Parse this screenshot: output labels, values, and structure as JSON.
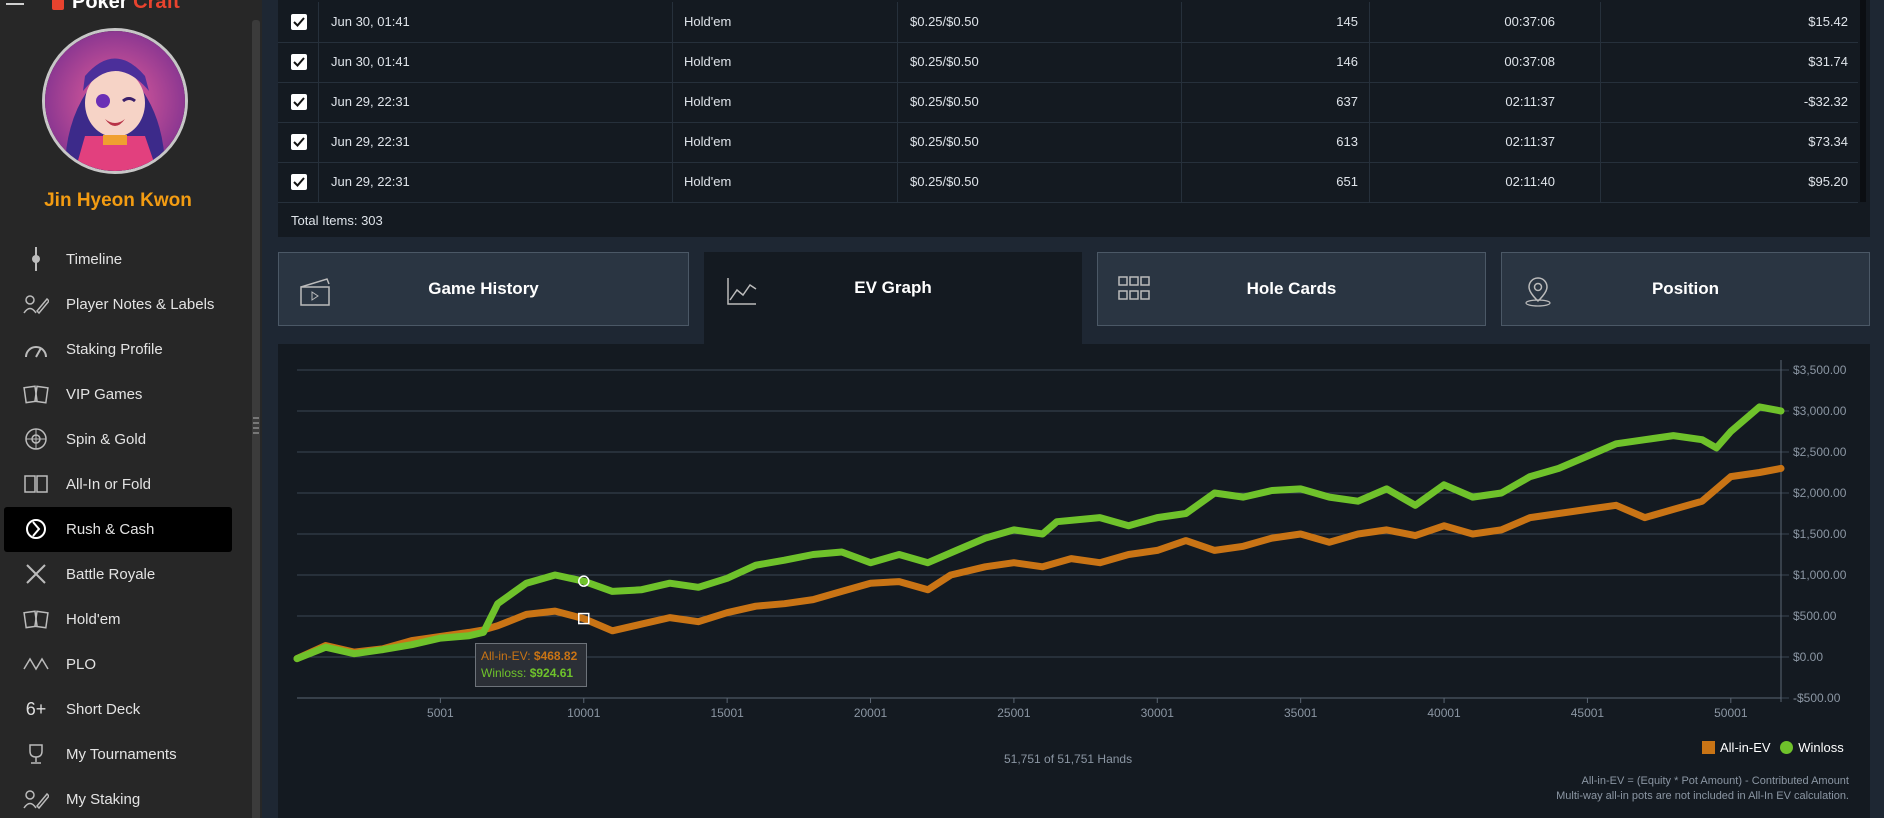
{
  "app": {
    "brand_main": "Poker",
    "brand_accent": "Craft"
  },
  "user": {
    "name": "Jin Hyeon Kwon"
  },
  "sidebar": {
    "items": [
      {
        "label": "Timeline",
        "icon": "timeline-icon",
        "active": false
      },
      {
        "label": "Player Notes & Labels",
        "icon": "notes-pen-icon",
        "active": false
      },
      {
        "label": "Staking Profile",
        "icon": "gauge-icon",
        "active": false
      },
      {
        "label": "VIP Games",
        "icon": "cards-icon",
        "active": false
      },
      {
        "label": "Spin & Gold",
        "icon": "spin-icon",
        "active": false
      },
      {
        "label": "All-In or Fold",
        "icon": "allin-cards-icon",
        "active": false
      },
      {
        "label": "Rush & Cash",
        "icon": "rush-icon",
        "active": true
      },
      {
        "label": "Battle Royale",
        "icon": "crossed-swords-icon",
        "active": false
      },
      {
        "label": "Hold'em",
        "icon": "holdem-cards-icon",
        "active": false
      },
      {
        "label": "PLO",
        "icon": "plo-cards-icon",
        "active": false
      },
      {
        "label": "Short Deck",
        "icon": "six-plus-icon",
        "active": false
      },
      {
        "label": "My Tournaments",
        "icon": "trophy-icon",
        "active": false
      },
      {
        "label": "My Staking",
        "icon": "staking-pen-icon",
        "active": false
      }
    ]
  },
  "table": {
    "rows": [
      {
        "date": "Jun 30, 01:41",
        "game": "Hold'em",
        "stakes": "$0.25/$0.50",
        "hands": "145",
        "duration": "00:37:06",
        "result": "$15.42"
      },
      {
        "date": "Jun 30, 01:41",
        "game": "Hold'em",
        "stakes": "$0.25/$0.50",
        "hands": "146",
        "duration": "00:37:08",
        "result": "$31.74"
      },
      {
        "date": "Jun 29, 22:31",
        "game": "Hold'em",
        "stakes": "$0.25/$0.50",
        "hands": "637",
        "duration": "02:11:37",
        "result": "-$32.32"
      },
      {
        "date": "Jun 29, 22:31",
        "game": "Hold'em",
        "stakes": "$0.25/$0.50",
        "hands": "613",
        "duration": "02:11:37",
        "result": "$73.34"
      },
      {
        "date": "Jun 29, 22:31",
        "game": "Hold'em",
        "stakes": "$0.25/$0.50",
        "hands": "651",
        "duration": "02:11:40",
        "result": "$95.20"
      }
    ],
    "total_items": "Total Items: 303"
  },
  "tabs": [
    {
      "label": "Game History",
      "icon": "clapperboard-icon",
      "active": false
    },
    {
      "label": "EV Graph",
      "icon": "line-graph-icon",
      "active": true
    },
    {
      "label": "Hole Cards",
      "icon": "grid-icon",
      "active": false
    },
    {
      "label": "Position",
      "icon": "location-pin-icon",
      "active": false
    }
  ],
  "chart_data": {
    "type": "line",
    "x_ticks": [
      5001,
      10001,
      15001,
      20001,
      25001,
      30001,
      35001,
      40001,
      45001,
      50001
    ],
    "x_tick_labels": [
      "5001",
      "10001",
      "15001",
      "20001",
      "25001",
      "30001",
      "35001",
      "40001",
      "45001",
      "50001"
    ],
    "xlim": [
      1,
      51751
    ],
    "y_ticks": [
      -500,
      0,
      500,
      1000,
      1500,
      2000,
      2500,
      3000,
      3500
    ],
    "y_tick_labels": [
      "-$500.00",
      "$0.00",
      "$500.00",
      "$1,000.00",
      "$1,500.00",
      "$2,000.00",
      "$2,500.00",
      "$3,000.00",
      "$3,500.00"
    ],
    "ylim": [
      -500,
      3500
    ],
    "grid": true,
    "legend_position": "bottom-right",
    "series": [
      {
        "name": "All-in-EV",
        "color": "#c97415",
        "points": [
          [
            1,
            -20
          ],
          [
            1000,
            140
          ],
          [
            2000,
            60
          ],
          [
            3000,
            100
          ],
          [
            4000,
            200
          ],
          [
            5000,
            250
          ],
          [
            6000,
            300
          ],
          [
            6500,
            330
          ],
          [
            7000,
            380
          ],
          [
            8000,
            520
          ],
          [
            9000,
            560
          ],
          [
            10001,
            468.82
          ],
          [
            11000,
            320
          ],
          [
            12000,
            400
          ],
          [
            13000,
            480
          ],
          [
            14000,
            430
          ],
          [
            15000,
            540
          ],
          [
            16000,
            620
          ],
          [
            17000,
            650
          ],
          [
            18000,
            700
          ],
          [
            19000,
            800
          ],
          [
            20000,
            900
          ],
          [
            21000,
            920
          ],
          [
            22000,
            820
          ],
          [
            22800,
            1000
          ],
          [
            24000,
            1100
          ],
          [
            25000,
            1150
          ],
          [
            26000,
            1100
          ],
          [
            27000,
            1200
          ],
          [
            28000,
            1150
          ],
          [
            29000,
            1250
          ],
          [
            30000,
            1300
          ],
          [
            31000,
            1420
          ],
          [
            32000,
            1300
          ],
          [
            33000,
            1350
          ],
          [
            34000,
            1450
          ],
          [
            35000,
            1500
          ],
          [
            36000,
            1400
          ],
          [
            37000,
            1500
          ],
          [
            38000,
            1550
          ],
          [
            39000,
            1480
          ],
          [
            40000,
            1600
          ],
          [
            41000,
            1500
          ],
          [
            42000,
            1550
          ],
          [
            43000,
            1700
          ],
          [
            44000,
            1750
          ],
          [
            45000,
            1800
          ],
          [
            46000,
            1850
          ],
          [
            47000,
            1700
          ],
          [
            48000,
            1800
          ],
          [
            49000,
            1900
          ],
          [
            50000,
            2200
          ],
          [
            51000,
            2250
          ],
          [
            51751,
            2300
          ]
        ]
      },
      {
        "name": "Winloss",
        "color": "#6fc22b",
        "points": [
          [
            1,
            -20
          ],
          [
            1000,
            120
          ],
          [
            2000,
            40
          ],
          [
            3000,
            90
          ],
          [
            4000,
            150
          ],
          [
            5000,
            230
          ],
          [
            6000,
            260
          ],
          [
            6500,
            300
          ],
          [
            7000,
            650
          ],
          [
            8000,
            900
          ],
          [
            9000,
            1000
          ],
          [
            10001,
            924.61
          ],
          [
            11000,
            800
          ],
          [
            12000,
            820
          ],
          [
            13000,
            900
          ],
          [
            14000,
            850
          ],
          [
            15000,
            960
          ],
          [
            16000,
            1120
          ],
          [
            17000,
            1180
          ],
          [
            18000,
            1250
          ],
          [
            19000,
            1280
          ],
          [
            20000,
            1150
          ],
          [
            21000,
            1250
          ],
          [
            22000,
            1150
          ],
          [
            23000,
            1300
          ],
          [
            24000,
            1450
          ],
          [
            25000,
            1550
          ],
          [
            26000,
            1500
          ],
          [
            26500,
            1650
          ],
          [
            28000,
            1700
          ],
          [
            29000,
            1600
          ],
          [
            30000,
            1700
          ],
          [
            31000,
            1750
          ],
          [
            32000,
            2000
          ],
          [
            33000,
            1950
          ],
          [
            34000,
            2030
          ],
          [
            35000,
            2050
          ],
          [
            36000,
            1950
          ],
          [
            37000,
            1900
          ],
          [
            38000,
            2050
          ],
          [
            39000,
            1850
          ],
          [
            40000,
            2100
          ],
          [
            41000,
            1950
          ],
          [
            42000,
            2000
          ],
          [
            43000,
            2200
          ],
          [
            44000,
            2300
          ],
          [
            45000,
            2450
          ],
          [
            46000,
            2600
          ],
          [
            47000,
            2650
          ],
          [
            48000,
            2700
          ],
          [
            49000,
            2650
          ],
          [
            49500,
            2550
          ],
          [
            50000,
            2750
          ],
          [
            51000,
            3050
          ],
          [
            51751,
            3000
          ]
        ]
      }
    ],
    "tooltip": {
      "x": 10001,
      "ev_label": "All-in-EV: ",
      "ev_value": "$468.82",
      "win_label": "Winloss: ",
      "win_value": "$924.61"
    }
  },
  "chart_footer": {
    "hand_count": "51,751 of 51,751 Hands",
    "legend_ev": "All-in-EV",
    "legend_win": "Winloss",
    "note1": "All-in-EV = (Equity * Pot Amount) - Contributed Amount",
    "note2": "Multi-way all-in pots are not included in All-In EV calculation."
  },
  "colors": {
    "accent_orange": "#f39c12",
    "ev": "#c97415",
    "winloss": "#6fc22b",
    "panel": "#141a21",
    "background": "#1e2733"
  }
}
